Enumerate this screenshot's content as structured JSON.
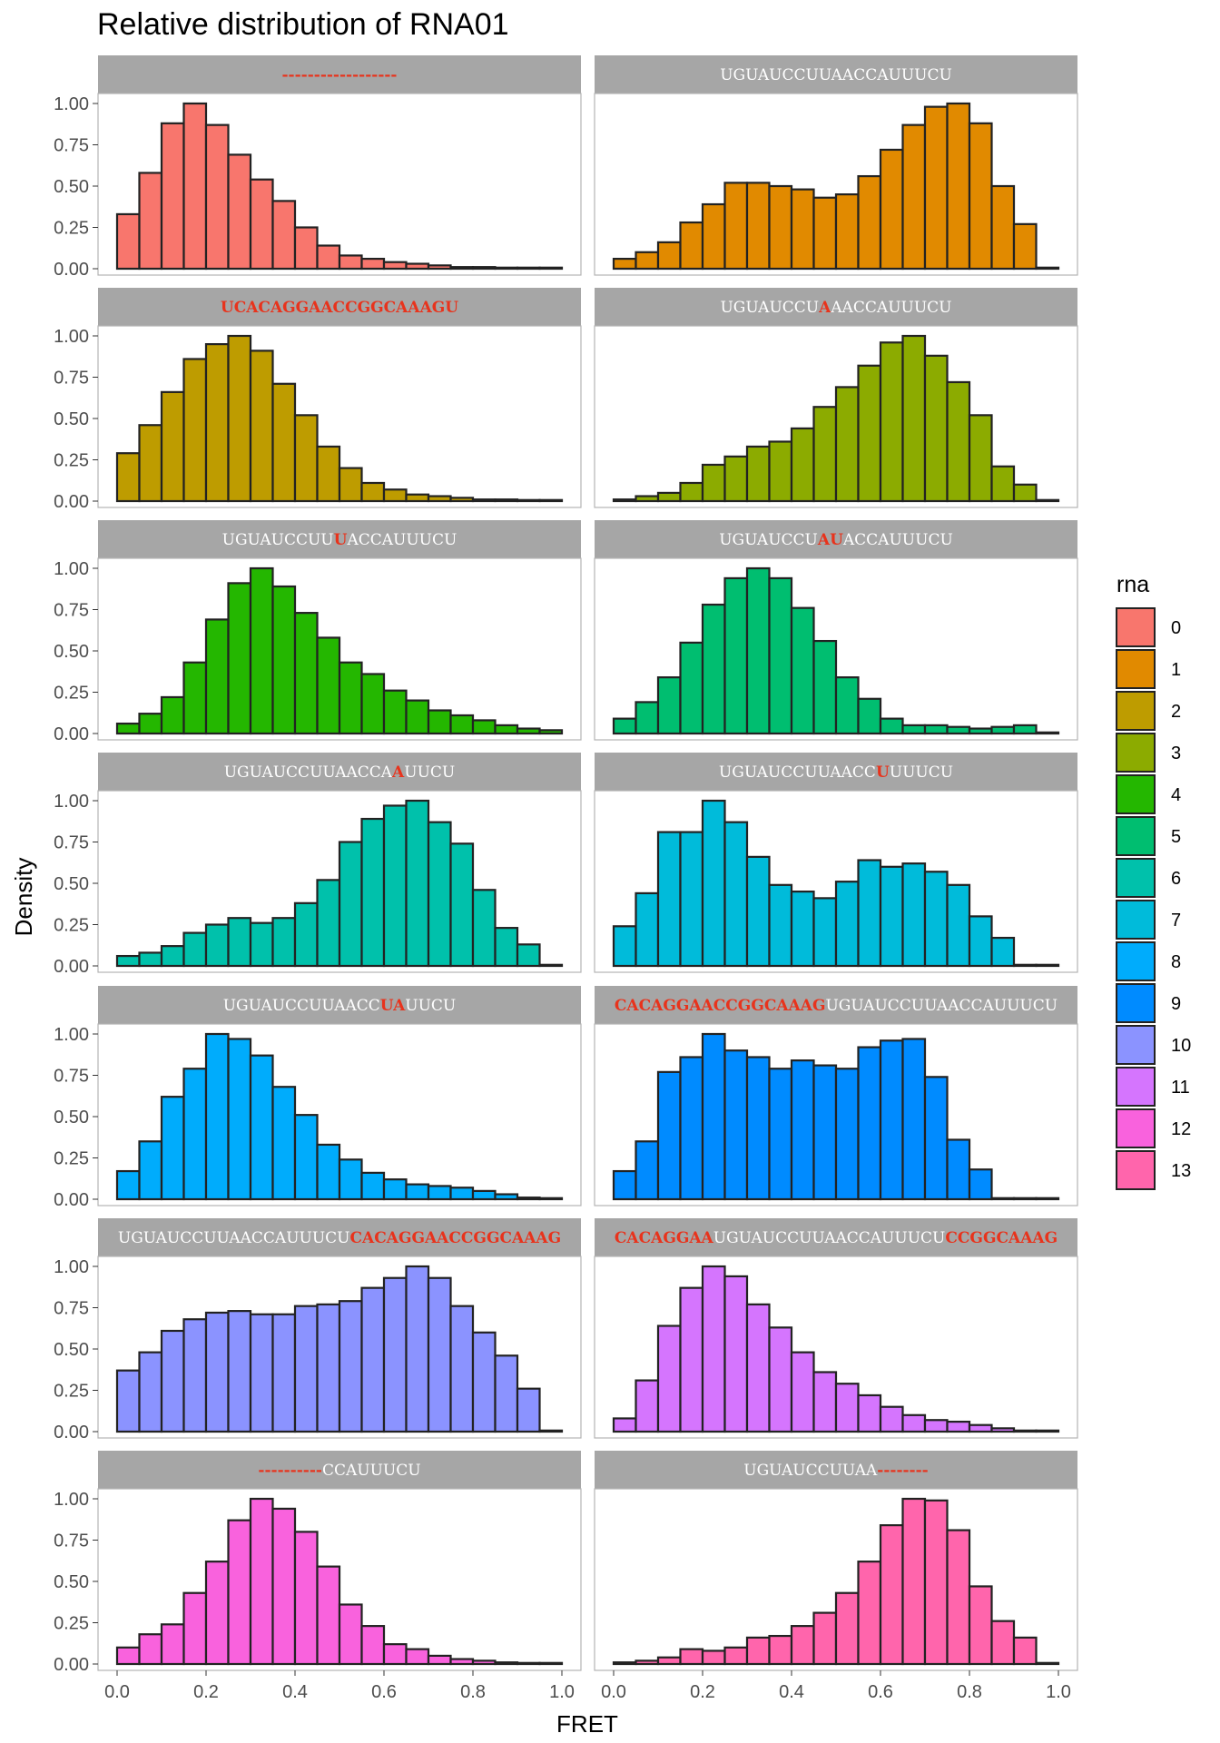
{
  "chart_data": {
    "type": "bar",
    "title": "Relative distribution of RNA01",
    "xlabel": "FRET",
    "ylabel": "Density",
    "xlim": [
      0,
      1
    ],
    "ylim": [
      0,
      1
    ],
    "x_ticks": [
      "0.0",
      "0.2",
      "0.4",
      "0.6",
      "0.8",
      "1.0"
    ],
    "y_ticks": [
      "0.00",
      "0.25",
      "0.50",
      "0.75",
      "1.00"
    ],
    "bin_centers": [
      0.025,
      0.075,
      0.125,
      0.175,
      0.225,
      0.275,
      0.325,
      0.375,
      0.425,
      0.475,
      0.525,
      0.575,
      0.625,
      0.675,
      0.725,
      0.775,
      0.825,
      0.875,
      0.925,
      0.975
    ],
    "strip_colors": {
      "normal": "#ffffff",
      "highlight": "#e8331c",
      "background": "#a6a6a6"
    },
    "legend": {
      "title": "rna",
      "placement": "right",
      "items": [
        {
          "label": "0",
          "color": "#F8766D"
        },
        {
          "label": "1",
          "color": "#E18A00"
        },
        {
          "label": "2",
          "color": "#BE9C00"
        },
        {
          "label": "3",
          "color": "#8CAB00"
        },
        {
          "label": "4",
          "color": "#24B700"
        },
        {
          "label": "5",
          "color": "#00BE70"
        },
        {
          "label": "6",
          "color": "#00C1AB"
        },
        {
          "label": "7",
          "color": "#00BBDA"
        },
        {
          "label": "8",
          "color": "#00ACFC"
        },
        {
          "label": "9",
          "color": "#008BFF"
        },
        {
          "label": "10",
          "color": "#8B93FF"
        },
        {
          "label": "11",
          "color": "#D575FE"
        },
        {
          "label": "12",
          "color": "#F962DD"
        },
        {
          "label": "13",
          "color": "#FF65AC"
        }
      ]
    },
    "panels": [
      {
        "rna": "0",
        "color": "#F8766D",
        "strip": [
          {
            "t": "------------------",
            "h": true
          }
        ],
        "values": [
          0.33,
          0.58,
          0.88,
          1.0,
          0.87,
          0.69,
          0.54,
          0.41,
          0.25,
          0.14,
          0.08,
          0.06,
          0.04,
          0.03,
          0.02,
          0.01,
          0.01,
          0.005,
          0.005,
          0.003
        ]
      },
      {
        "rna": "1",
        "color": "#E18A00",
        "strip": [
          {
            "t": "UGUAUCCUUAACCAUUUCU",
            "h": false
          }
        ],
        "values": [
          0.06,
          0.1,
          0.16,
          0.28,
          0.39,
          0.52,
          0.52,
          0.5,
          0.48,
          0.43,
          0.45,
          0.56,
          0.72,
          0.87,
          0.98,
          1.0,
          0.88,
          0.5,
          0.27,
          0.0
        ]
      },
      {
        "rna": "2",
        "color": "#BE9C00",
        "strip": [
          {
            "t": "UCACAGGAACCGGCAAAGU",
            "h": true
          }
        ],
        "values": [
          0.29,
          0.46,
          0.66,
          0.86,
          0.95,
          1.0,
          0.91,
          0.71,
          0.52,
          0.33,
          0.2,
          0.11,
          0.07,
          0.04,
          0.03,
          0.02,
          0.01,
          0.01,
          0.005,
          0.005
        ]
      },
      {
        "rna": "3",
        "color": "#8CAB00",
        "strip": [
          {
            "t": "UGUAUCCU",
            "h": false
          },
          {
            "t": "A",
            "h": true
          },
          {
            "t": "AACCAUUUCU",
            "h": false
          }
        ],
        "values": [
          0.01,
          0.03,
          0.05,
          0.11,
          0.22,
          0.27,
          0.33,
          0.36,
          0.44,
          0.57,
          0.69,
          0.82,
          0.96,
          1.0,
          0.88,
          0.72,
          0.52,
          0.21,
          0.1,
          0.0
        ]
      },
      {
        "rna": "4",
        "color": "#24B700",
        "strip": [
          {
            "t": "UGUAUCCUU",
            "h": false
          },
          {
            "t": "U",
            "h": true
          },
          {
            "t": "ACCAUUUCU",
            "h": false
          }
        ],
        "values": [
          0.06,
          0.12,
          0.22,
          0.43,
          0.69,
          0.91,
          1.0,
          0.89,
          0.73,
          0.58,
          0.43,
          0.36,
          0.26,
          0.2,
          0.14,
          0.11,
          0.08,
          0.05,
          0.03,
          0.02
        ]
      },
      {
        "rna": "5",
        "color": "#00BE70",
        "strip": [
          {
            "t": "UGUAUCCU",
            "h": false
          },
          {
            "t": "AU",
            "h": true
          },
          {
            "t": "ACCAUUUCU",
            "h": false
          }
        ],
        "values": [
          0.09,
          0.19,
          0.34,
          0.55,
          0.78,
          0.94,
          1.0,
          0.94,
          0.76,
          0.56,
          0.34,
          0.21,
          0.09,
          0.05,
          0.05,
          0.04,
          0.03,
          0.04,
          0.05,
          0.0
        ]
      },
      {
        "rna": "6",
        "color": "#00C1AB",
        "strip": [
          {
            "t": "UGUAUCCUUAACCA",
            "h": false
          },
          {
            "t": "A",
            "h": true
          },
          {
            "t": "UUCU",
            "h": false
          }
        ],
        "values": [
          0.06,
          0.08,
          0.12,
          0.2,
          0.25,
          0.29,
          0.26,
          0.29,
          0.38,
          0.52,
          0.75,
          0.89,
          0.97,
          1.0,
          0.87,
          0.74,
          0.46,
          0.23,
          0.13,
          0.0
        ]
      },
      {
        "rna": "7",
        "color": "#00BBDA",
        "strip": [
          {
            "t": "UGUAUCCUUAACC",
            "h": false
          },
          {
            "t": "U",
            "h": true
          },
          {
            "t": "UUUCU",
            "h": false
          }
        ],
        "values": [
          0.24,
          0.44,
          0.81,
          0.81,
          1.0,
          0.87,
          0.66,
          0.49,
          0.45,
          0.41,
          0.51,
          0.64,
          0.6,
          0.62,
          0.57,
          0.49,
          0.3,
          0.17,
          0.0,
          0.0
        ]
      },
      {
        "rna": "8",
        "color": "#00ACFC",
        "strip": [
          {
            "t": "UGUAUCCUUAACC",
            "h": false
          },
          {
            "t": "UA",
            "h": true
          },
          {
            "t": "UUCU",
            "h": false
          }
        ],
        "values": [
          0.17,
          0.35,
          0.62,
          0.79,
          1.0,
          0.97,
          0.87,
          0.68,
          0.51,
          0.33,
          0.24,
          0.16,
          0.12,
          0.09,
          0.08,
          0.07,
          0.05,
          0.03,
          0.01,
          0.0
        ]
      },
      {
        "rna": "9",
        "color": "#008BFF",
        "strip": [
          {
            "t": "CACAGGAACCGGCAAAG",
            "h": true
          },
          {
            "t": "UGUAUCCUUAACCAUUUCU",
            "h": false
          }
        ],
        "values": [
          0.17,
          0.35,
          0.77,
          0.86,
          1.0,
          0.9,
          0.86,
          0.79,
          0.84,
          0.81,
          0.79,
          0.92,
          0.96,
          0.97,
          0.74,
          0.36,
          0.18,
          0.0,
          0.0,
          0.0
        ]
      },
      {
        "rna": "10",
        "color": "#8B93FF",
        "strip": [
          {
            "t": "UGUAUCCUUAACCAUUUCU",
            "h": false
          },
          {
            "t": "CACAGGAACCGGCAAAG",
            "h": true
          }
        ],
        "values": [
          0.37,
          0.48,
          0.61,
          0.68,
          0.72,
          0.73,
          0.71,
          0.71,
          0.76,
          0.77,
          0.79,
          0.87,
          0.93,
          1.0,
          0.93,
          0.76,
          0.6,
          0.46,
          0.26,
          0.0
        ]
      },
      {
        "rna": "11",
        "color": "#D575FE",
        "strip": [
          {
            "t": "CACAGGAA",
            "h": true
          },
          {
            "t": "UGUAUCCUUAACCAUUUCU",
            "h": false
          },
          {
            "t": "CCGGCAAAG",
            "h": true
          }
        ],
        "values": [
          0.08,
          0.31,
          0.64,
          0.87,
          1.0,
          0.94,
          0.77,
          0.63,
          0.48,
          0.36,
          0.29,
          0.22,
          0.15,
          0.1,
          0.07,
          0.06,
          0.04,
          0.02,
          0.0,
          0.0
        ]
      },
      {
        "rna": "12",
        "color": "#F962DD",
        "strip": [
          {
            "t": "----------",
            "h": true
          },
          {
            "t": "CCAUUUCU",
            "h": false
          }
        ],
        "values": [
          0.1,
          0.18,
          0.24,
          0.43,
          0.62,
          0.87,
          1.0,
          0.94,
          0.8,
          0.59,
          0.36,
          0.23,
          0.12,
          0.09,
          0.05,
          0.03,
          0.02,
          0.01,
          0.0,
          0.0
        ]
      },
      {
        "rna": "13",
        "color": "#FF65AC",
        "strip": [
          {
            "t": "UGUAUCCUUAA",
            "h": false
          },
          {
            "t": "--------",
            "h": true
          }
        ],
        "values": [
          0.01,
          0.02,
          0.04,
          0.09,
          0.08,
          0.1,
          0.16,
          0.17,
          0.23,
          0.31,
          0.43,
          0.62,
          0.84,
          1.0,
          0.99,
          0.81,
          0.47,
          0.26,
          0.16,
          0.0
        ]
      }
    ]
  }
}
